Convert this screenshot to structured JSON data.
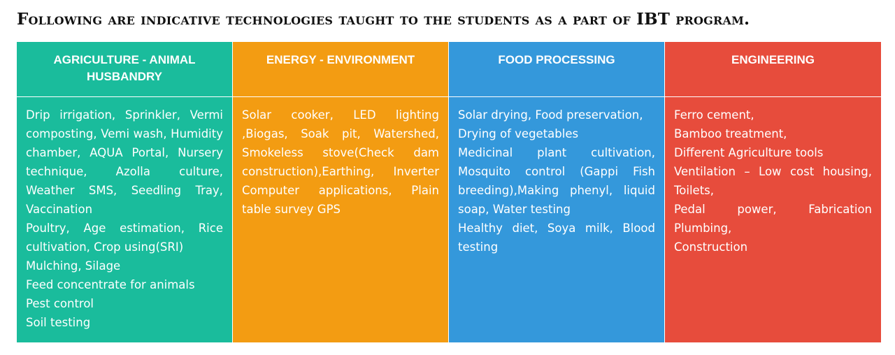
{
  "title": "Following are indicative technologies taught to the students as a part of IBT program.",
  "colors": {
    "agriculture": "#1abc9c",
    "energy": "#f39c12",
    "food": "#3498db",
    "engineering": "#e74c3c"
  },
  "columns": [
    {
      "header": "AGRICULTURE - ANIMAL HUSBANDRY",
      "items": [
        "Drip irrigation, Sprinkler, Vermi composting, Vemi wash, Humidity chamber, AQUA Portal, Nursery technique, Azolla culture, Weather SMS, Seedling Tray, Vaccination",
        "Poultry, Age estimation, Rice cultivation, Crop using(SRI)",
        "Mulching, Silage",
        "Feed concentrate for animals",
        "Pest control",
        "Soil testing"
      ]
    },
    {
      "header": "ENERGY - ENVIRONMENT",
      "items": [
        "Solar cooker, LED lighting ,Biogas, Soak pit, Watershed, Smokeless stove(Check dam construction),Earthing, Inverter Computer applications, Plain table survey GPS"
      ]
    },
    {
      "header": "FOOD PROCESSING",
      "items": [
        "Solar drying, Food preservation,",
        "Drying of vegetables",
        "Medicinal plant cultivation, Mosquito control (Gappi Fish breeding),Making phenyl, liquid soap, Water testing",
        "Healthy diet, Soya milk, Blood testing"
      ]
    },
    {
      "header": "ENGINEERING",
      "items": [
        "Ferro cement,",
        "Bamboo treatment,",
        "Different Agriculture tools",
        "Ventilation – Low cost housing, Toilets,",
        "Pedal power, Fabrication Plumbing,",
        "Construction"
      ]
    }
  ]
}
